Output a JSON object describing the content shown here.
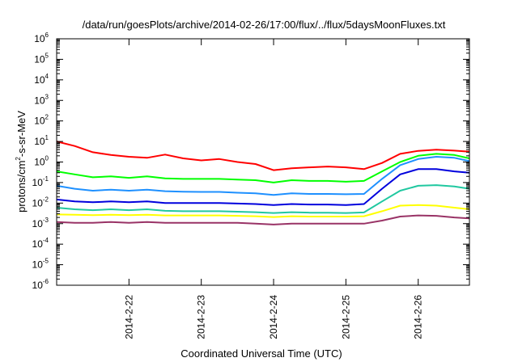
{
  "chart_data": {
    "type": "line",
    "title": "/data/run/goesPlots/archive/2014-02-26/17:00/flux/../flux/5daysMoonFluxes.txt",
    "xlabel": "Coordinated Universal Time (UTC)",
    "ylabel_parts": {
      "base": "protons/cm",
      "sup": "2",
      "rest": "-s-sr-MeV"
    },
    "yscale": "log",
    "ylim": [
      1e-06,
      1000000.0
    ],
    "y_ticks": [
      {
        "base": "10",
        "exp": "-6",
        "value": 1e-06
      },
      {
        "base": "10",
        "exp": "-5",
        "value": 1e-05
      },
      {
        "base": "10",
        "exp": "-4",
        "value": 0.0001
      },
      {
        "base": "10",
        "exp": "-3",
        "value": 0.001
      },
      {
        "base": "10",
        "exp": "-2",
        "value": 0.01
      },
      {
        "base": "10",
        "exp": "-1",
        "value": 0.1
      },
      {
        "base": "10",
        "exp": "0",
        "value": 1.0
      },
      {
        "base": "10",
        "exp": "1",
        "value": 10.0
      },
      {
        "base": "10",
        "exp": "2",
        "value": 100.0
      },
      {
        "base": "10",
        "exp": "3",
        "value": 1000.0
      },
      {
        "base": "10",
        "exp": "4",
        "value": 10000.0
      },
      {
        "base": "10",
        "exp": "5",
        "value": 100000.0
      },
      {
        "base": "10",
        "exp": "6",
        "value": 1000000.0
      }
    ],
    "x_ticks": [
      {
        "label": "2014-2-22",
        "value": "2014-02-22"
      },
      {
        "label": "2014-2-23",
        "value": "2014-02-23"
      },
      {
        "label": "2014-2-24",
        "value": "2014-02-24"
      },
      {
        "label": "2014-2-25",
        "value": "2014-02-25"
      },
      {
        "label": "2014-2-26",
        "value": "2014-02-26"
      }
    ],
    "xlim": [
      "2014-02-21 00:00",
      "2014-02-26 17:00"
    ],
    "grid": false,
    "x": [
      "2014-02-21 00:00",
      "2014-02-21 06:00",
      "2014-02-21 12:00",
      "2014-02-21 18:00",
      "2014-02-22 00:00",
      "2014-02-22 06:00",
      "2014-02-22 12:00",
      "2014-02-22 18:00",
      "2014-02-23 00:00",
      "2014-02-23 06:00",
      "2014-02-23 12:00",
      "2014-02-23 18:00",
      "2014-02-24 00:00",
      "2014-02-24 06:00",
      "2014-02-24 12:00",
      "2014-02-24 18:00",
      "2014-02-25 00:00",
      "2014-02-25 06:00",
      "2014-02-25 12:00",
      "2014-02-25 18:00",
      "2014-02-26 00:00",
      "2014-02-26 06:00",
      "2014-02-26 12:00",
      "2014-02-26 17:00"
    ],
    "series": [
      {
        "color": "#ff0000",
        "values": [
          10,
          6,
          3,
          2.2,
          1.8,
          1.6,
          2.3,
          1.5,
          1.2,
          1.4,
          1.0,
          0.8,
          0.4,
          0.5,
          0.55,
          0.6,
          0.55,
          0.45,
          0.9,
          2.5,
          3.5,
          4.0,
          3.6,
          3.2
        ]
      },
      {
        "color": "#00ff00",
        "values": [
          0.35,
          0.25,
          0.18,
          0.2,
          0.17,
          0.2,
          0.16,
          0.15,
          0.15,
          0.15,
          0.14,
          0.13,
          0.1,
          0.13,
          0.12,
          0.12,
          0.11,
          0.12,
          0.35,
          1.0,
          2.0,
          2.5,
          2.2,
          1.5
        ]
      },
      {
        "color": "#1e90ff",
        "values": [
          0.07,
          0.05,
          0.04,
          0.045,
          0.04,
          0.045,
          0.038,
          0.036,
          0.035,
          0.035,
          0.032,
          0.03,
          0.025,
          0.03,
          0.028,
          0.028,
          0.027,
          0.028,
          0.15,
          0.7,
          1.4,
          1.8,
          1.6,
          1.1
        ]
      },
      {
        "color": "#0000dd",
        "values": [
          0.015,
          0.012,
          0.011,
          0.012,
          0.011,
          0.012,
          0.01,
          0.01,
          0.01,
          0.01,
          0.0095,
          0.009,
          0.008,
          0.009,
          0.0085,
          0.0085,
          0.008,
          0.009,
          0.05,
          0.25,
          0.45,
          0.45,
          0.35,
          0.3
        ]
      },
      {
        "color": "#20c8a0",
        "values": [
          0.006,
          0.005,
          0.0045,
          0.005,
          0.0045,
          0.005,
          0.0042,
          0.004,
          0.004,
          0.004,
          0.0038,
          0.0036,
          0.0033,
          0.0036,
          0.0034,
          0.0034,
          0.0033,
          0.0035,
          0.012,
          0.04,
          0.07,
          0.075,
          0.065,
          0.05
        ]
      },
      {
        "color": "#ffff00",
        "values": [
          0.0028,
          0.0027,
          0.0026,
          0.0027,
          0.0026,
          0.0027,
          0.0025,
          0.0025,
          0.0025,
          0.0025,
          0.0024,
          0.0023,
          0.0021,
          0.0023,
          0.0022,
          0.0022,
          0.0022,
          0.0023,
          0.004,
          0.0075,
          0.008,
          0.0075,
          0.006,
          0.005
        ]
      },
      {
        "color": "#993366",
        "values": [
          0.0012,
          0.0011,
          0.0011,
          0.0012,
          0.0011,
          0.0012,
          0.0011,
          0.0011,
          0.0011,
          0.0011,
          0.0011,
          0.001,
          0.0009,
          0.001,
          0.001,
          0.001,
          0.001,
          0.001,
          0.0014,
          0.0022,
          0.0025,
          0.0024,
          0.002,
          0.0018
        ]
      }
    ]
  }
}
